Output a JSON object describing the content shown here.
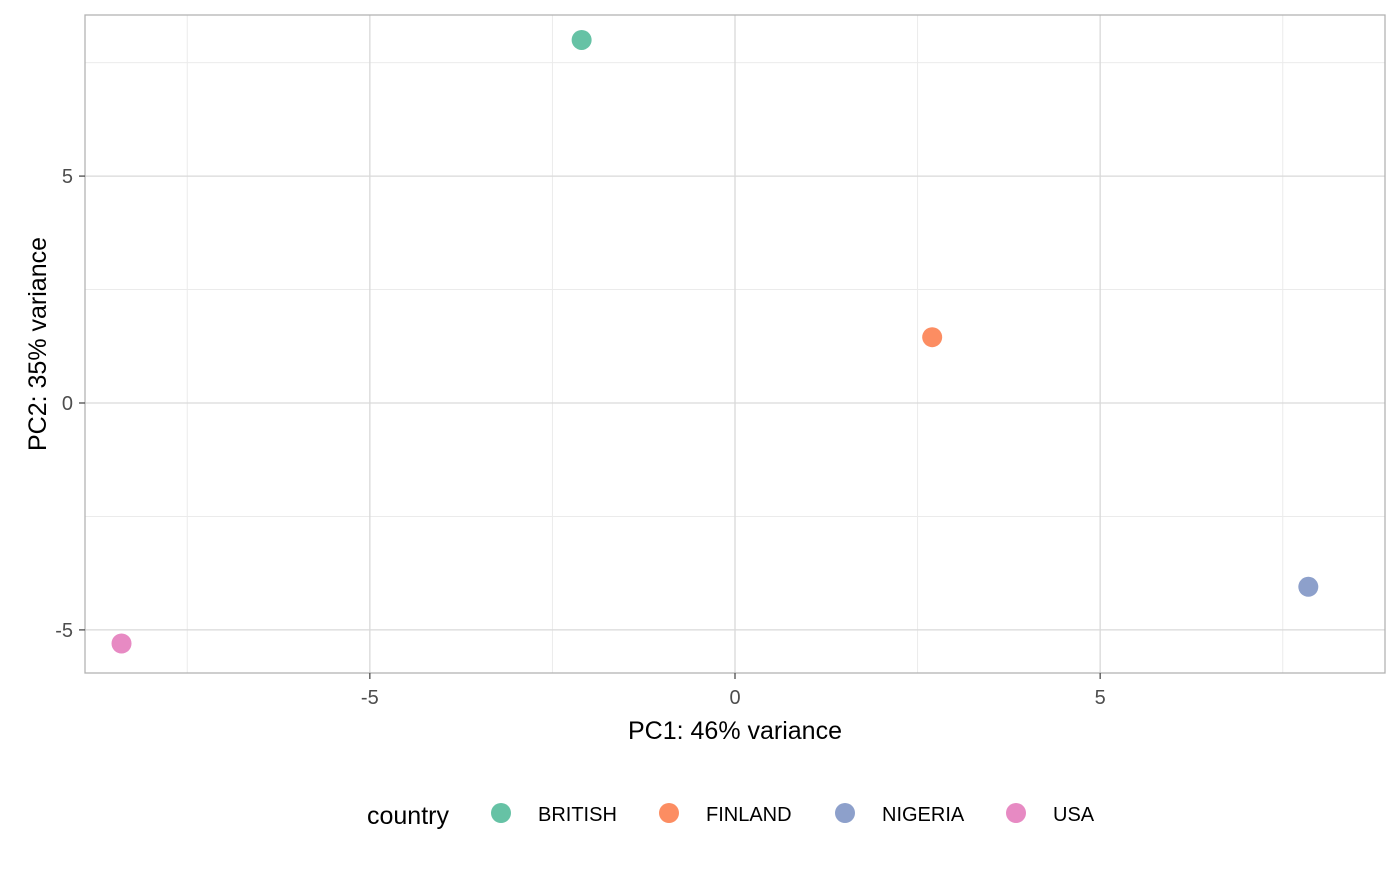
{
  "chart_data": {
    "type": "scatter",
    "title": "",
    "xlabel": "PC1: 46% variance",
    "ylabel": "PC2: 35% variance",
    "xlim": [
      -8.9,
      8.9
    ],
    "ylim": [
      -5.95,
      8.55
    ],
    "x_ticks": [
      -5,
      0,
      5
    ],
    "x_tick_labels": [
      "-5",
      "0",
      "5"
    ],
    "y_ticks": [
      -5,
      0,
      5
    ],
    "y_tick_labels": [
      "-5",
      "0",
      "5"
    ],
    "x_minor_ticks": [
      -7.5,
      -2.5,
      2.5,
      7.5
    ],
    "y_minor_ticks": [
      -2.5,
      2.5,
      7.5
    ],
    "grid": true,
    "legend": {
      "title": "country",
      "position": "bottom"
    },
    "series": [
      {
        "name": "BRITISH",
        "color": "#66c2a5",
        "points": [
          {
            "x": -2.1,
            "y": 8.0
          }
        ]
      },
      {
        "name": "FINLAND",
        "color": "#fc8d62",
        "points": [
          {
            "x": 2.7,
            "y": 1.45
          }
        ]
      },
      {
        "name": "NIGERIA",
        "color": "#8da0cb",
        "points": [
          {
            "x": 7.85,
            "y": -4.05
          }
        ]
      },
      {
        "name": "USA",
        "color": "#e78ac3",
        "points": [
          {
            "x": -8.4,
            "y": -5.3
          }
        ]
      }
    ]
  }
}
